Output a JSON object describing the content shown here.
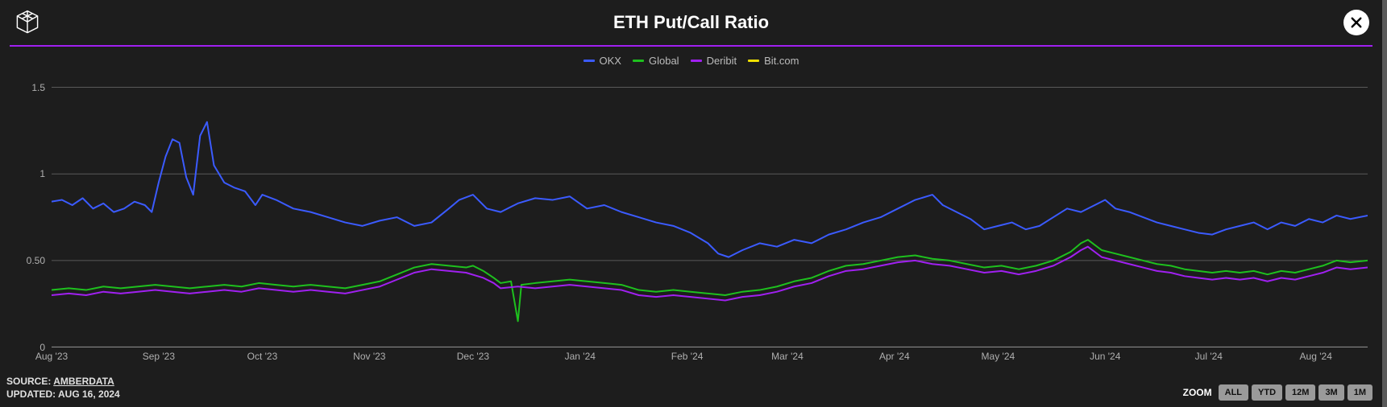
{
  "header": {
    "title": "ETH Put/Call Ratio",
    "accent_color": "#a020f0"
  },
  "close_label": "×",
  "legend": [
    {
      "label": "OKX",
      "color": "#3b5bff"
    },
    {
      "label": "Global",
      "color": "#1ec01e"
    },
    {
      "label": "Deribit",
      "color": "#a020f0"
    },
    {
      "label": "Bit.com",
      "color": "#f0e000"
    }
  ],
  "chart": {
    "type": "line",
    "background_color": "#1d1d1d",
    "grid_color": "#5a5a5a",
    "axis_line_color": "#888888",
    "text_color": "#b0b0b0",
    "axis_fontsize": 12,
    "line_width": 2,
    "ylim": [
      0,
      1.6
    ],
    "yticks": [
      {
        "v": 0,
        "label": "0"
      },
      {
        "v": 0.5,
        "label": "0.50"
      },
      {
        "v": 1,
        "label": "1"
      },
      {
        "v": 1.5,
        "label": "1.5"
      }
    ],
    "xticks": [
      {
        "t": 0,
        "label": "Aug '23"
      },
      {
        "t": 31,
        "label": "Sep '23"
      },
      {
        "t": 61,
        "label": "Oct '23"
      },
      {
        "t": 92,
        "label": "Nov '23"
      },
      {
        "t": 122,
        "label": "Dec '23"
      },
      {
        "t": 153,
        "label": "Jan '24"
      },
      {
        "t": 184,
        "label": "Feb '24"
      },
      {
        "t": 213,
        "label": "Mar '24"
      },
      {
        "t": 244,
        "label": "Apr '24"
      },
      {
        "t": 274,
        "label": "May '24"
      },
      {
        "t": 305,
        "label": "Jun '24"
      },
      {
        "t": 335,
        "label": "Jul '24"
      },
      {
        "t": 366,
        "label": "Aug '24"
      }
    ],
    "x_domain": [
      0,
      381
    ],
    "series": [
      {
        "name": "OKX",
        "color": "#3b5bff",
        "points": [
          [
            0,
            0.84
          ],
          [
            3,
            0.85
          ],
          [
            6,
            0.82
          ],
          [
            9,
            0.86
          ],
          [
            12,
            0.8
          ],
          [
            15,
            0.83
          ],
          [
            18,
            0.78
          ],
          [
            21,
            0.8
          ],
          [
            24,
            0.84
          ],
          [
            27,
            0.82
          ],
          [
            29,
            0.78
          ],
          [
            31,
            0.95
          ],
          [
            33,
            1.1
          ],
          [
            35,
            1.2
          ],
          [
            37,
            1.18
          ],
          [
            39,
            0.98
          ],
          [
            41,
            0.88
          ],
          [
            43,
            1.22
          ],
          [
            45,
            1.3
          ],
          [
            47,
            1.05
          ],
          [
            50,
            0.95
          ],
          [
            53,
            0.92
          ],
          [
            56,
            0.9
          ],
          [
            59,
            0.82
          ],
          [
            61,
            0.88
          ],
          [
            65,
            0.85
          ],
          [
            70,
            0.8
          ],
          [
            75,
            0.78
          ],
          [
            80,
            0.75
          ],
          [
            85,
            0.72
          ],
          [
            90,
            0.7
          ],
          [
            95,
            0.73
          ],
          [
            100,
            0.75
          ],
          [
            105,
            0.7
          ],
          [
            110,
            0.72
          ],
          [
            115,
            0.8
          ],
          [
            118,
            0.85
          ],
          [
            122,
            0.88
          ],
          [
            126,
            0.8
          ],
          [
            130,
            0.78
          ],
          [
            135,
            0.83
          ],
          [
            140,
            0.86
          ],
          [
            145,
            0.85
          ],
          [
            150,
            0.87
          ],
          [
            155,
            0.8
          ],
          [
            160,
            0.82
          ],
          [
            165,
            0.78
          ],
          [
            170,
            0.75
          ],
          [
            175,
            0.72
          ],
          [
            180,
            0.7
          ],
          [
            185,
            0.66
          ],
          [
            190,
            0.6
          ],
          [
            193,
            0.54
          ],
          [
            196,
            0.52
          ],
          [
            200,
            0.56
          ],
          [
            205,
            0.6
          ],
          [
            210,
            0.58
          ],
          [
            215,
            0.62
          ],
          [
            220,
            0.6
          ],
          [
            225,
            0.65
          ],
          [
            230,
            0.68
          ],
          [
            235,
            0.72
          ],
          [
            240,
            0.75
          ],
          [
            245,
            0.8
          ],
          [
            250,
            0.85
          ],
          [
            255,
            0.88
          ],
          [
            258,
            0.82
          ],
          [
            262,
            0.78
          ],
          [
            266,
            0.74
          ],
          [
            270,
            0.68
          ],
          [
            274,
            0.7
          ],
          [
            278,
            0.72
          ],
          [
            282,
            0.68
          ],
          [
            286,
            0.7
          ],
          [
            290,
            0.75
          ],
          [
            294,
            0.8
          ],
          [
            298,
            0.78
          ],
          [
            302,
            0.82
          ],
          [
            305,
            0.85
          ],
          [
            308,
            0.8
          ],
          [
            312,
            0.78
          ],
          [
            316,
            0.75
          ],
          [
            320,
            0.72
          ],
          [
            324,
            0.7
          ],
          [
            328,
            0.68
          ],
          [
            332,
            0.66
          ],
          [
            336,
            0.65
          ],
          [
            340,
            0.68
          ],
          [
            344,
            0.7
          ],
          [
            348,
            0.72
          ],
          [
            352,
            0.68
          ],
          [
            356,
            0.72
          ],
          [
            360,
            0.7
          ],
          [
            364,
            0.74
          ],
          [
            368,
            0.72
          ],
          [
            372,
            0.76
          ],
          [
            376,
            0.74
          ],
          [
            381,
            0.76
          ]
        ]
      },
      {
        "name": "Global",
        "color": "#1ec01e",
        "points": [
          [
            0,
            0.33
          ],
          [
            5,
            0.34
          ],
          [
            10,
            0.33
          ],
          [
            15,
            0.35
          ],
          [
            20,
            0.34
          ],
          [
            25,
            0.35
          ],
          [
            30,
            0.36
          ],
          [
            35,
            0.35
          ],
          [
            40,
            0.34
          ],
          [
            45,
            0.35
          ],
          [
            50,
            0.36
          ],
          [
            55,
            0.35
          ],
          [
            60,
            0.37
          ],
          [
            65,
            0.36
          ],
          [
            70,
            0.35
          ],
          [
            75,
            0.36
          ],
          [
            80,
            0.35
          ],
          [
            85,
            0.34
          ],
          [
            90,
            0.36
          ],
          [
            95,
            0.38
          ],
          [
            100,
            0.42
          ],
          [
            105,
            0.46
          ],
          [
            110,
            0.48
          ],
          [
            115,
            0.47
          ],
          [
            120,
            0.46
          ],
          [
            122,
            0.47
          ],
          [
            125,
            0.44
          ],
          [
            128,
            0.4
          ],
          [
            130,
            0.37
          ],
          [
            133,
            0.38
          ],
          [
            135,
            0.15
          ],
          [
            136,
            0.36
          ],
          [
            140,
            0.37
          ],
          [
            145,
            0.38
          ],
          [
            150,
            0.39
          ],
          [
            155,
            0.38
          ],
          [
            160,
            0.37
          ],
          [
            165,
            0.36
          ],
          [
            170,
            0.33
          ],
          [
            175,
            0.32
          ],
          [
            180,
            0.33
          ],
          [
            185,
            0.32
          ],
          [
            190,
            0.31
          ],
          [
            195,
            0.3
          ],
          [
            200,
            0.32
          ],
          [
            205,
            0.33
          ],
          [
            210,
            0.35
          ],
          [
            215,
            0.38
          ],
          [
            220,
            0.4
          ],
          [
            225,
            0.44
          ],
          [
            230,
            0.47
          ],
          [
            235,
            0.48
          ],
          [
            240,
            0.5
          ],
          [
            245,
            0.52
          ],
          [
            250,
            0.53
          ],
          [
            255,
            0.51
          ],
          [
            260,
            0.5
          ],
          [
            265,
            0.48
          ],
          [
            270,
            0.46
          ],
          [
            275,
            0.47
          ],
          [
            280,
            0.45
          ],
          [
            285,
            0.47
          ],
          [
            290,
            0.5
          ],
          [
            295,
            0.55
          ],
          [
            298,
            0.6
          ],
          [
            300,
            0.62
          ],
          [
            304,
            0.56
          ],
          [
            308,
            0.54
          ],
          [
            312,
            0.52
          ],
          [
            316,
            0.5
          ],
          [
            320,
            0.48
          ],
          [
            324,
            0.47
          ],
          [
            328,
            0.45
          ],
          [
            332,
            0.44
          ],
          [
            336,
            0.43
          ],
          [
            340,
            0.44
          ],
          [
            344,
            0.43
          ],
          [
            348,
            0.44
          ],
          [
            352,
            0.42
          ],
          [
            356,
            0.44
          ],
          [
            360,
            0.43
          ],
          [
            364,
            0.45
          ],
          [
            368,
            0.47
          ],
          [
            372,
            0.5
          ],
          [
            376,
            0.49
          ],
          [
            381,
            0.5
          ]
        ]
      },
      {
        "name": "Deribit",
        "color": "#a020f0",
        "points": [
          [
            0,
            0.3
          ],
          [
            5,
            0.31
          ],
          [
            10,
            0.3
          ],
          [
            15,
            0.32
          ],
          [
            20,
            0.31
          ],
          [
            25,
            0.32
          ],
          [
            30,
            0.33
          ],
          [
            35,
            0.32
          ],
          [
            40,
            0.31
          ],
          [
            45,
            0.32
          ],
          [
            50,
            0.33
          ],
          [
            55,
            0.32
          ],
          [
            60,
            0.34
          ],
          [
            65,
            0.33
          ],
          [
            70,
            0.32
          ],
          [
            75,
            0.33
          ],
          [
            80,
            0.32
          ],
          [
            85,
            0.31
          ],
          [
            90,
            0.33
          ],
          [
            95,
            0.35
          ],
          [
            100,
            0.39
          ],
          [
            105,
            0.43
          ],
          [
            110,
            0.45
          ],
          [
            115,
            0.44
          ],
          [
            120,
            0.43
          ],
          [
            125,
            0.4
          ],
          [
            128,
            0.37
          ],
          [
            130,
            0.34
          ],
          [
            135,
            0.35
          ],
          [
            140,
            0.34
          ],
          [
            145,
            0.35
          ],
          [
            150,
            0.36
          ],
          [
            155,
            0.35
          ],
          [
            160,
            0.34
          ],
          [
            165,
            0.33
          ],
          [
            170,
            0.3
          ],
          [
            175,
            0.29
          ],
          [
            180,
            0.3
          ],
          [
            185,
            0.29
          ],
          [
            190,
            0.28
          ],
          [
            195,
            0.27
          ],
          [
            200,
            0.29
          ],
          [
            205,
            0.3
          ],
          [
            210,
            0.32
          ],
          [
            215,
            0.35
          ],
          [
            220,
            0.37
          ],
          [
            225,
            0.41
          ],
          [
            230,
            0.44
          ],
          [
            235,
            0.45
          ],
          [
            240,
            0.47
          ],
          [
            245,
            0.49
          ],
          [
            250,
            0.5
          ],
          [
            255,
            0.48
          ],
          [
            260,
            0.47
          ],
          [
            265,
            0.45
          ],
          [
            270,
            0.43
          ],
          [
            275,
            0.44
          ],
          [
            280,
            0.42
          ],
          [
            285,
            0.44
          ],
          [
            290,
            0.47
          ],
          [
            295,
            0.52
          ],
          [
            298,
            0.56
          ],
          [
            300,
            0.58
          ],
          [
            304,
            0.52
          ],
          [
            308,
            0.5
          ],
          [
            312,
            0.48
          ],
          [
            316,
            0.46
          ],
          [
            320,
            0.44
          ],
          [
            324,
            0.43
          ],
          [
            328,
            0.41
          ],
          [
            332,
            0.4
          ],
          [
            336,
            0.39
          ],
          [
            340,
            0.4
          ],
          [
            344,
            0.39
          ],
          [
            348,
            0.4
          ],
          [
            352,
            0.38
          ],
          [
            356,
            0.4
          ],
          [
            360,
            0.39
          ],
          [
            364,
            0.41
          ],
          [
            368,
            0.43
          ],
          [
            372,
            0.46
          ],
          [
            376,
            0.45
          ],
          [
            381,
            0.46
          ]
        ]
      }
    ]
  },
  "footer": {
    "source_label": "SOURCE: ",
    "source_name": "AMBERDATA",
    "updated_label": "UPDATED: ",
    "updated_value": "AUG 16, 2024",
    "zoom_label": "ZOOM",
    "zoom_options": [
      "ALL",
      "YTD",
      "12M",
      "3M",
      "1M"
    ]
  }
}
